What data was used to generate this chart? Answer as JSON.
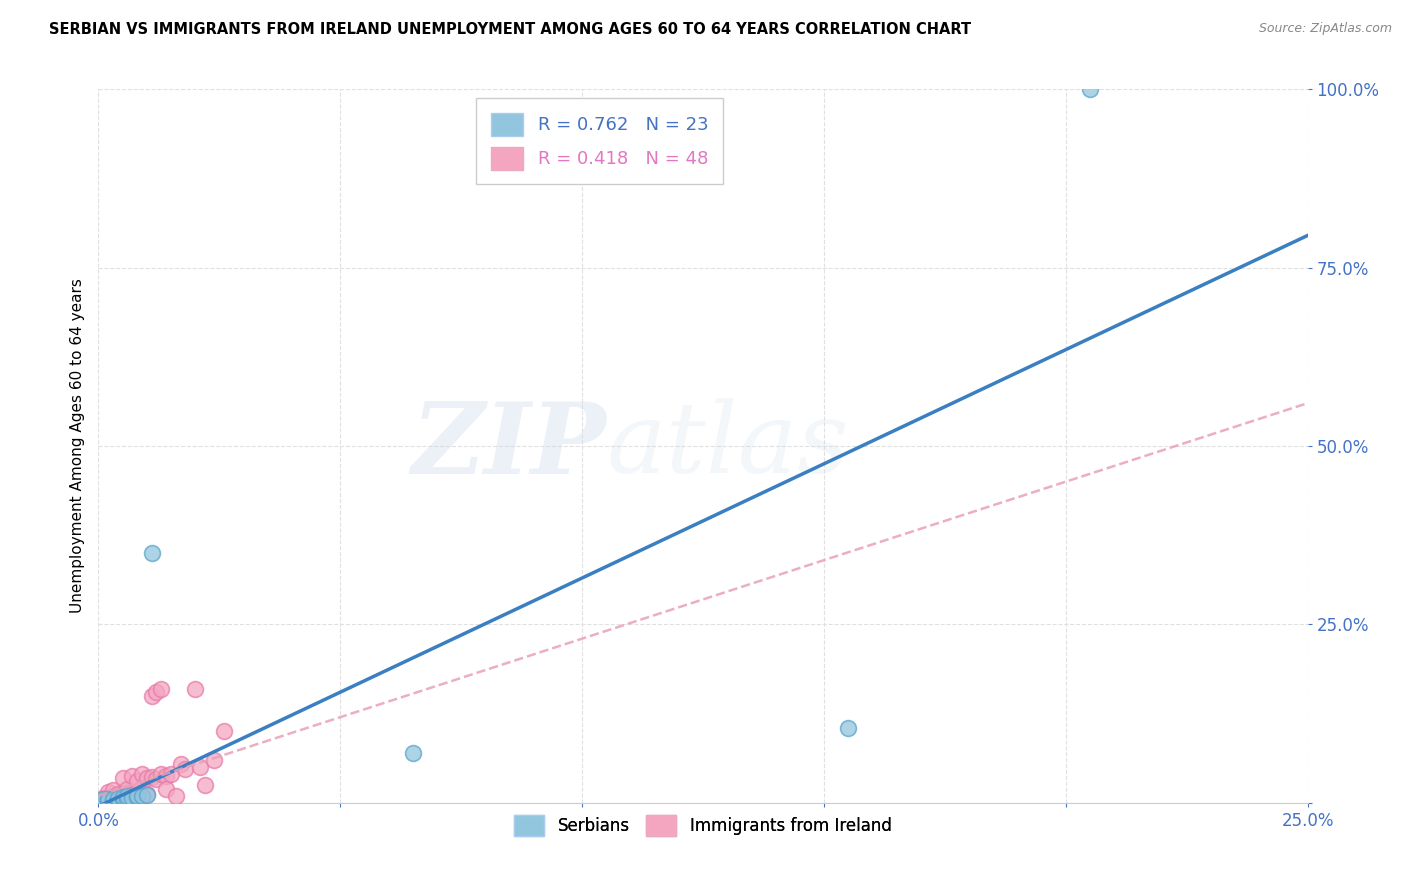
{
  "title": "SERBIAN VS IMMIGRANTS FROM IRELAND UNEMPLOYMENT AMONG AGES 60 TO 64 YEARS CORRELATION CHART",
  "source": "Source: ZipAtlas.com",
  "ylabel": "Unemployment Among Ages 60 to 64 years",
  "xlim": [
    0,
    0.25
  ],
  "ylim": [
    0,
    1.0
  ],
  "xticks": [
    0.0,
    0.05,
    0.1,
    0.15,
    0.2,
    0.25
  ],
  "yticks": [
    0.0,
    0.25,
    0.5,
    0.75,
    1.0
  ],
  "xticklabels": [
    "0.0%",
    "",
    "",
    "",
    "",
    "25.0%"
  ],
  "yticklabels": [
    "",
    "25.0%",
    "50.0%",
    "75.0%",
    "100.0%"
  ],
  "serbian_color": "#92c5de",
  "ireland_color": "#f4a6c0",
  "serbian_edge_color": "#5ba3cc",
  "ireland_edge_color": "#e87aaa",
  "serbian_line_color": "#3a7fc1",
  "ireland_line_color": "#e8a0b8",
  "legend_label_serbian": "R = 0.762   N = 23",
  "legend_label_ireland": "R = 0.418   N = 48",
  "legend_text_color_serbian": "#4472c4",
  "legend_text_color_ireland": "#e377c2",
  "watermark_text": "ZIPatlas",
  "serbian_x": [
    0.001,
    0.001,
    0.001,
    0.002,
    0.002,
    0.002,
    0.003,
    0.003,
    0.004,
    0.004,
    0.005,
    0.005,
    0.006,
    0.006,
    0.007,
    0.008,
    0.008,
    0.009,
    0.01,
    0.011,
    0.065,
    0.155,
    0.205
  ],
  "serbian_y": [
    0.002,
    0.003,
    0.005,
    0.002,
    0.004,
    0.006,
    0.003,
    0.005,
    0.004,
    0.007,
    0.005,
    0.008,
    0.006,
    0.009,
    0.007,
    0.008,
    0.01,
    0.009,
    0.011,
    0.35,
    0.07,
    0.105,
    1.0
  ],
  "ireland_x": [
    0.001,
    0.001,
    0.001,
    0.002,
    0.002,
    0.002,
    0.002,
    0.003,
    0.003,
    0.003,
    0.003,
    0.004,
    0.004,
    0.004,
    0.005,
    0.005,
    0.005,
    0.005,
    0.006,
    0.006,
    0.006,
    0.007,
    0.007,
    0.007,
    0.008,
    0.008,
    0.008,
    0.009,
    0.009,
    0.01,
    0.01,
    0.011,
    0.011,
    0.012,
    0.012,
    0.013,
    0.013,
    0.014,
    0.014,
    0.015,
    0.016,
    0.017,
    0.018,
    0.02,
    0.021,
    0.022,
    0.024,
    0.026
  ],
  "ireland_y": [
    0.002,
    0.004,
    0.007,
    0.003,
    0.005,
    0.008,
    0.015,
    0.004,
    0.006,
    0.009,
    0.018,
    0.005,
    0.007,
    0.012,
    0.005,
    0.008,
    0.013,
    0.035,
    0.006,
    0.009,
    0.02,
    0.008,
    0.012,
    0.038,
    0.008,
    0.015,
    0.03,
    0.01,
    0.04,
    0.012,
    0.035,
    0.036,
    0.15,
    0.033,
    0.155,
    0.04,
    0.16,
    0.038,
    0.02,
    0.04,
    0.01,
    0.055,
    0.048,
    0.16,
    0.05,
    0.025,
    0.06,
    0.1
  ],
  "serbian_line_slope": 3.2,
  "serbian_line_intercept": -0.005,
  "ireland_line_slope": 2.2,
  "ireland_line_intercept": 0.01,
  "background_color": "#ffffff",
  "grid_color": "#e0e0e0",
  "grid_style": "--"
}
